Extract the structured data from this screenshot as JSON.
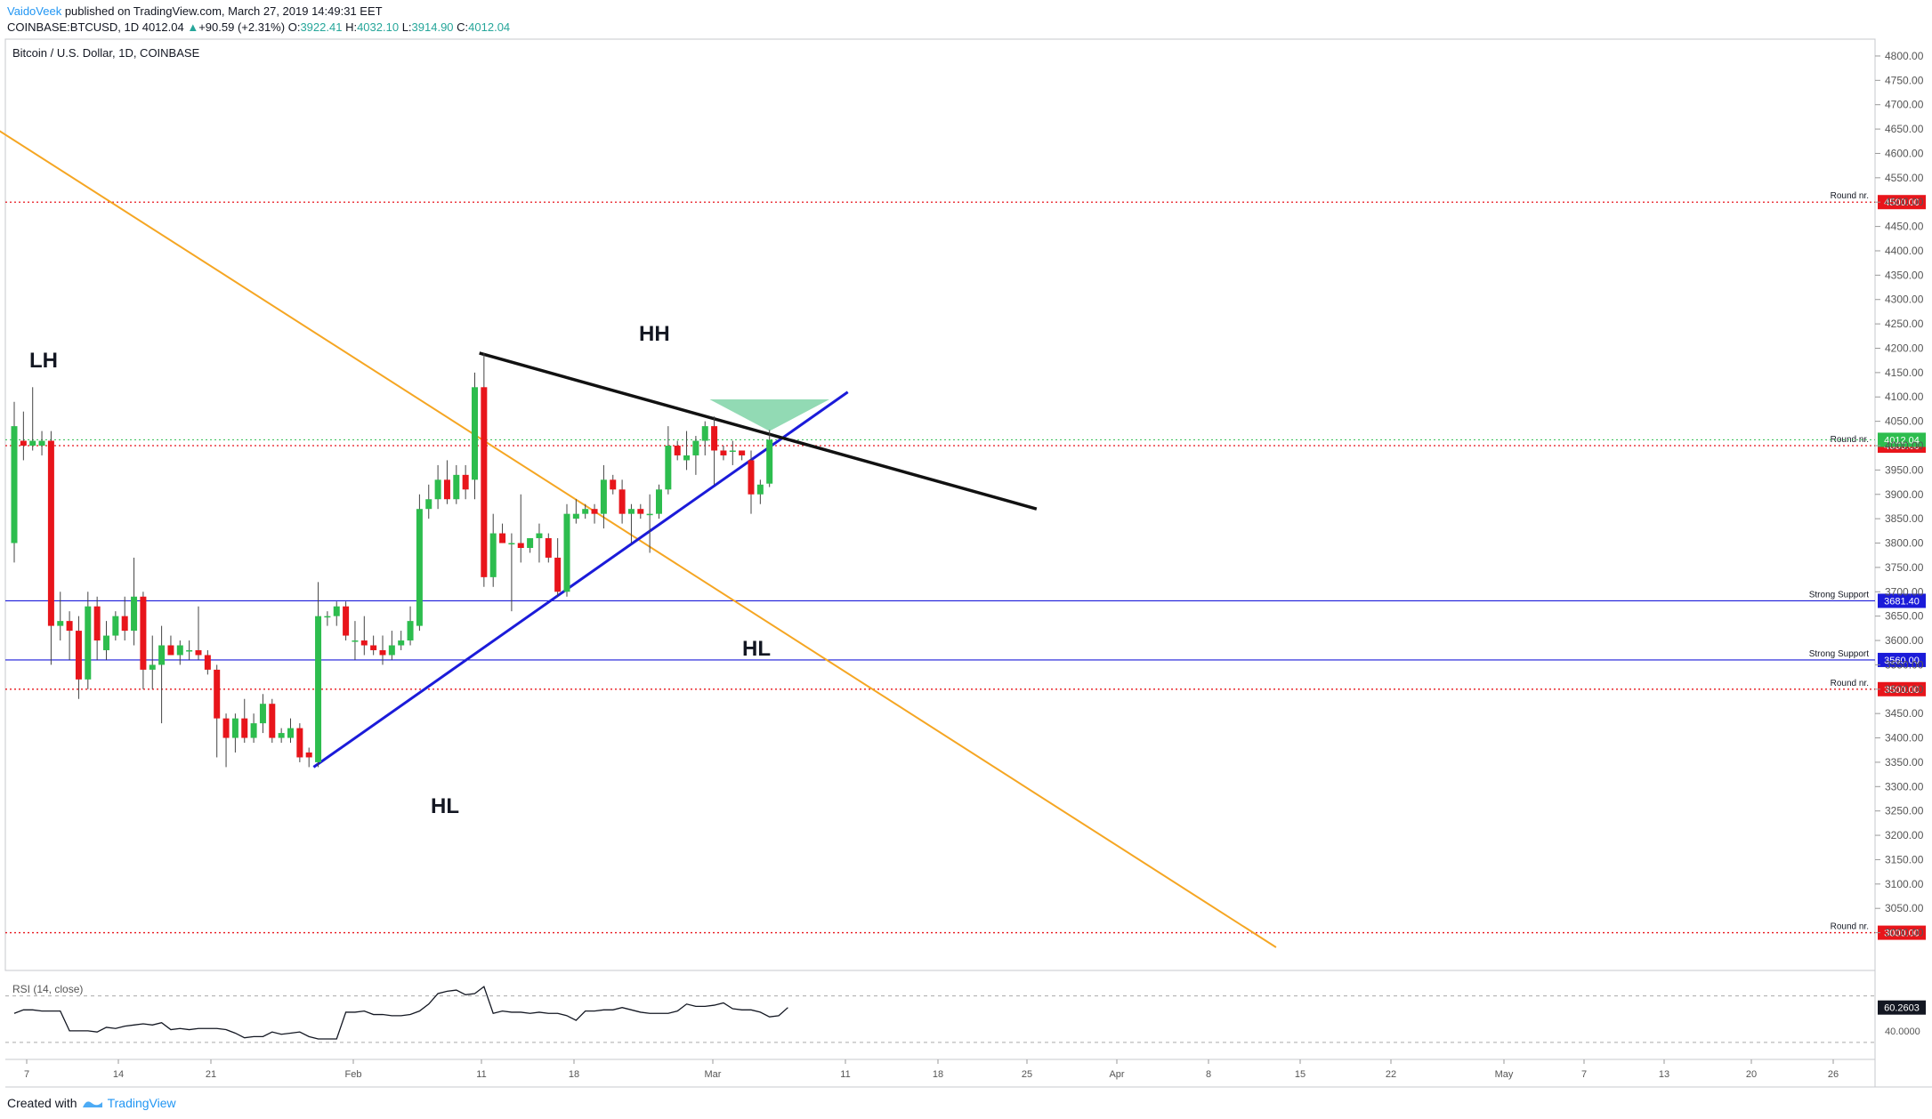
{
  "header": {
    "author": "VaidoVeek",
    "published": " published on TradingView.com, March 27, 2019 14:49:31 EET",
    "symbol_line": "COINBASE:BTCUSD, 1D",
    "last": "4012.04",
    "change": "+90.59 (+2.31%)",
    "o_label": "O:",
    "o": "3922.41",
    "h_label": "H:",
    "h": "4032.10",
    "l_label": "L:",
    "l": "3914.90",
    "c_label": "C:",
    "c": "4012.04"
  },
  "footer": {
    "created_with": "Created with",
    "brand": "TradingView"
  },
  "colors": {
    "up": "#2dbd4e",
    "down": "#e8151b",
    "blue_line": "#1b1bd9",
    "orange": "#f5a623",
    "black": "#111111",
    "red_dotted": "#e8151b",
    "green_fill": "#7fd4a7"
  },
  "chart_data": {
    "type": "candlestick",
    "title": "Bitcoin / U.S. Dollar, 1D, COINBASE",
    "ylim": [
      2970,
      4820
    ],
    "y_ticks": [
      3000,
      3050,
      3100,
      3150,
      3200,
      3250,
      3300,
      3350,
      3400,
      3450,
      3500,
      3550,
      3600,
      3650,
      3700,
      3750,
      3800,
      3850,
      3900,
      3950,
      4000,
      4050,
      4100,
      4150,
      4200,
      4250,
      4300,
      4350,
      4400,
      4450,
      4500,
      4550,
      4600,
      4650,
      4700,
      4750,
      4800
    ],
    "x_ticks": [
      "7",
      "14",
      "21",
      "Feb",
      "11",
      "18",
      "Mar",
      "11",
      "18",
      "25",
      "Apr",
      "8",
      "15",
      "22",
      "May",
      "7",
      "13",
      "20",
      "26"
    ],
    "candles": [
      {
        "o": 3800,
        "h": 4090,
        "l": 3760,
        "c": 4040
      },
      {
        "o": 4010,
        "h": 4070,
        "l": 3970,
        "c": 4000
      },
      {
        "o": 4000,
        "h": 4120,
        "l": 3990,
        "c": 4010
      },
      {
        "o": 4000,
        "h": 4030,
        "l": 3980,
        "c": 4010
      },
      {
        "o": 4010,
        "h": 4030,
        "l": 3550,
        "c": 3630
      },
      {
        "o": 3630,
        "h": 3700,
        "l": 3600,
        "c": 3640
      },
      {
        "o": 3640,
        "h": 3660,
        "l": 3560,
        "c": 3620
      },
      {
        "o": 3620,
        "h": 3650,
        "l": 3480,
        "c": 3520
      },
      {
        "o": 3520,
        "h": 3700,
        "l": 3500,
        "c": 3670
      },
      {
        "o": 3670,
        "h": 3690,
        "l": 3560,
        "c": 3600
      },
      {
        "o": 3580,
        "h": 3640,
        "l": 3560,
        "c": 3610
      },
      {
        "o": 3610,
        "h": 3660,
        "l": 3600,
        "c": 3650
      },
      {
        "o": 3650,
        "h": 3690,
        "l": 3600,
        "c": 3620
      },
      {
        "o": 3620,
        "h": 3770,
        "l": 3590,
        "c": 3690
      },
      {
        "o": 3690,
        "h": 3700,
        "l": 3500,
        "c": 3540
      },
      {
        "o": 3540,
        "h": 3610,
        "l": 3500,
        "c": 3550
      },
      {
        "o": 3550,
        "h": 3630,
        "l": 3430,
        "c": 3590
      },
      {
        "o": 3590,
        "h": 3610,
        "l": 3570,
        "c": 3570
      },
      {
        "o": 3570,
        "h": 3600,
        "l": 3550,
        "c": 3590
      },
      {
        "o": 3580,
        "h": 3600,
        "l": 3560,
        "c": 3580
      },
      {
        "o": 3580,
        "h": 3670,
        "l": 3560,
        "c": 3570
      },
      {
        "o": 3570,
        "h": 3580,
        "l": 3530,
        "c": 3540
      },
      {
        "o": 3540,
        "h": 3550,
        "l": 3360,
        "c": 3440
      },
      {
        "o": 3440,
        "h": 3450,
        "l": 3340,
        "c": 3400
      },
      {
        "o": 3400,
        "h": 3450,
        "l": 3370,
        "c": 3440
      },
      {
        "o": 3440,
        "h": 3480,
        "l": 3390,
        "c": 3400
      },
      {
        "o": 3400,
        "h": 3450,
        "l": 3390,
        "c": 3430
      },
      {
        "o": 3430,
        "h": 3490,
        "l": 3410,
        "c": 3470
      },
      {
        "o": 3470,
        "h": 3480,
        "l": 3390,
        "c": 3400
      },
      {
        "o": 3400,
        "h": 3420,
        "l": 3390,
        "c": 3410
      },
      {
        "o": 3400,
        "h": 3440,
        "l": 3390,
        "c": 3420
      },
      {
        "o": 3420,
        "h": 3430,
        "l": 3350,
        "c": 3360
      },
      {
        "o": 3370,
        "h": 3380,
        "l": 3340,
        "c": 3360
      },
      {
        "o": 3350,
        "h": 3720,
        "l": 3340,
        "c": 3650
      },
      {
        "o": 3650,
        "h": 3660,
        "l": 3630,
        "c": 3650
      },
      {
        "o": 3650,
        "h": 3680,
        "l": 3630,
        "c": 3670
      },
      {
        "o": 3670,
        "h": 3680,
        "l": 3600,
        "c": 3610
      },
      {
        "o": 3600,
        "h": 3640,
        "l": 3560,
        "c": 3600
      },
      {
        "o": 3600,
        "h": 3650,
        "l": 3570,
        "c": 3590
      },
      {
        "o": 3590,
        "h": 3610,
        "l": 3570,
        "c": 3580
      },
      {
        "o": 3580,
        "h": 3610,
        "l": 3550,
        "c": 3570
      },
      {
        "o": 3570,
        "h": 3620,
        "l": 3560,
        "c": 3590
      },
      {
        "o": 3590,
        "h": 3620,
        "l": 3580,
        "c": 3600
      },
      {
        "o": 3600,
        "h": 3670,
        "l": 3590,
        "c": 3640
      },
      {
        "o": 3630,
        "h": 3900,
        "l": 3620,
        "c": 3870
      },
      {
        "o": 3870,
        "h": 3920,
        "l": 3850,
        "c": 3890
      },
      {
        "o": 3890,
        "h": 3960,
        "l": 3870,
        "c": 3930
      },
      {
        "o": 3930,
        "h": 3970,
        "l": 3880,
        "c": 3890
      },
      {
        "o": 3890,
        "h": 3960,
        "l": 3880,
        "c": 3940
      },
      {
        "o": 3940,
        "h": 3960,
        "l": 3890,
        "c": 3910
      },
      {
        "o": 3930,
        "h": 4150,
        "l": 3890,
        "c": 4120
      },
      {
        "o": 4120,
        "h": 4190,
        "l": 3710,
        "c": 3730
      },
      {
        "o": 3730,
        "h": 3860,
        "l": 3710,
        "c": 3820
      },
      {
        "o": 3820,
        "h": 3840,
        "l": 3800,
        "c": 3800
      },
      {
        "o": 3800,
        "h": 3820,
        "l": 3660,
        "c": 3800
      },
      {
        "o": 3800,
        "h": 3900,
        "l": 3760,
        "c": 3790
      },
      {
        "o": 3790,
        "h": 3810,
        "l": 3780,
        "c": 3810
      },
      {
        "o": 3810,
        "h": 3840,
        "l": 3760,
        "c": 3820
      },
      {
        "o": 3810,
        "h": 3820,
        "l": 3760,
        "c": 3770
      },
      {
        "o": 3770,
        "h": 3810,
        "l": 3690,
        "c": 3700
      },
      {
        "o": 3700,
        "h": 3880,
        "l": 3690,
        "c": 3860
      },
      {
        "o": 3850,
        "h": 3890,
        "l": 3840,
        "c": 3860
      },
      {
        "o": 3860,
        "h": 3880,
        "l": 3850,
        "c": 3870
      },
      {
        "o": 3870,
        "h": 3880,
        "l": 3840,
        "c": 3860
      },
      {
        "o": 3860,
        "h": 3960,
        "l": 3830,
        "c": 3930
      },
      {
        "o": 3930,
        "h": 3940,
        "l": 3900,
        "c": 3910
      },
      {
        "o": 3910,
        "h": 3930,
        "l": 3840,
        "c": 3860
      },
      {
        "o": 3860,
        "h": 3880,
        "l": 3800,
        "c": 3870
      },
      {
        "o": 3870,
        "h": 3880,
        "l": 3850,
        "c": 3860
      },
      {
        "o": 3860,
        "h": 3900,
        "l": 3780,
        "c": 3860
      },
      {
        "o": 3860,
        "h": 3920,
        "l": 3850,
        "c": 3910
      },
      {
        "o": 3910,
        "h": 4040,
        "l": 3900,
        "c": 4000
      },
      {
        "o": 4000,
        "h": 4010,
        "l": 3970,
        "c": 3980
      },
      {
        "o": 3970,
        "h": 4030,
        "l": 3950,
        "c": 3980
      },
      {
        "o": 3980,
        "h": 4020,
        "l": 3940,
        "c": 4010
      },
      {
        "o": 4010,
        "h": 4050,
        "l": 3980,
        "c": 4040
      },
      {
        "o": 4040,
        "h": 4060,
        "l": 3920,
        "c": 3990
      },
      {
        "o": 3990,
        "h": 4000,
        "l": 3970,
        "c": 3980
      },
      {
        "o": 3990,
        "h": 4010,
        "l": 3960,
        "c": 3990
      },
      {
        "o": 3990,
        "h": 3990,
        "l": 3970,
        "c": 3980
      },
      {
        "o": 3970,
        "h": 3990,
        "l": 3860,
        "c": 3900
      },
      {
        "o": 3900,
        "h": 3930,
        "l": 3880,
        "c": 3920
      },
      {
        "o": 3922,
        "h": 4032,
        "l": 3915,
        "c": 4012
      }
    ],
    "horizontal_levels": [
      {
        "price": 4500,
        "label": "Round nr.",
        "value": "4500.00",
        "style": "dotted-red"
      },
      {
        "price": 4000,
        "label": "Round nr.",
        "value": "4000.00",
        "style": "dotted-red"
      },
      {
        "price": 3681.4,
        "label": "Strong Support",
        "value": "3681.40",
        "style": "solid-blue"
      },
      {
        "price": 3560,
        "label": "Strong Support",
        "value": "3560.00",
        "style": "solid-blue"
      },
      {
        "price": 3500,
        "label": "Round nr.",
        "value": "3500.00",
        "style": "dotted-red"
      },
      {
        "price": 3000,
        "label": "Round nr.",
        "value": "3000.00",
        "style": "dotted-red"
      }
    ],
    "last_price_label": "4012.04",
    "annotations": [
      "LH",
      "HH",
      "HL",
      "HL"
    ],
    "rsi": {
      "label": "RSI (14, close)",
      "value_label": "60.2603",
      "tick_label": "40.0000",
      "values": [
        55,
        58,
        58,
        57,
        57,
        57,
        40,
        40,
        40,
        39,
        43,
        42,
        44,
        45,
        46,
        45,
        47,
        41,
        42,
        41,
        42,
        42,
        42,
        41,
        38,
        34,
        35,
        35,
        39,
        37,
        38,
        39,
        35,
        33,
        33,
        33,
        56,
        56,
        57,
        54,
        54,
        53,
        53,
        54,
        57,
        63,
        72,
        74,
        75,
        71,
        72,
        78,
        55,
        57,
        56,
        56,
        55,
        56,
        55,
        55,
        53,
        49,
        57,
        57,
        58,
        58,
        60,
        58,
        56,
        55,
        55,
        55,
        57,
        63,
        61,
        61,
        62,
        64,
        59,
        58,
        58,
        56,
        52,
        53,
        60
      ]
    }
  }
}
